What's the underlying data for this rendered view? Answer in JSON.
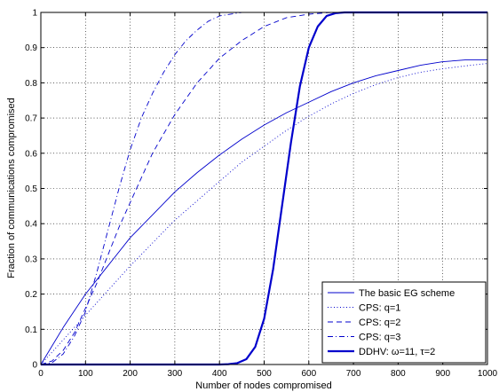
{
  "chart_data": {
    "type": "line",
    "title": "",
    "xlabel": "Number of nodes compromised",
    "ylabel": "Fraction of communications compromised",
    "xlim": [
      0,
      1000
    ],
    "ylim": [
      0,
      1
    ],
    "xticks": [
      0,
      100,
      200,
      300,
      400,
      500,
      600,
      700,
      800,
      900,
      1000
    ],
    "yticks": [
      0,
      0.1,
      0.2,
      0.3,
      0.4,
      0.5,
      0.6,
      0.7,
      0.8,
      0.9,
      1
    ],
    "xtick_labels": [
      "0",
      "100",
      "200",
      "300",
      "400",
      "500",
      "600",
      "700",
      "800",
      "900",
      "1000"
    ],
    "ytick_labels": [
      "0",
      "0.1",
      "0.2",
      "0.3",
      "0.4",
      "0.5",
      "0.6",
      "0.7",
      "0.8",
      "0.9",
      "1"
    ],
    "grid": true,
    "legend_position": "bottom-right",
    "color": "#0000cc",
    "series": [
      {
        "name": "The basic EG scheme",
        "style": "solid",
        "width": "thin",
        "x": [
          0,
          50,
          100,
          150,
          200,
          250,
          300,
          350,
          400,
          450,
          500,
          550,
          600,
          650,
          700,
          750,
          800,
          850,
          900,
          950,
          1000
        ],
        "y": [
          0,
          0.105,
          0.2,
          0.28,
          0.36,
          0.425,
          0.49,
          0.545,
          0.595,
          0.64,
          0.68,
          0.715,
          0.745,
          0.775,
          0.8,
          0.82,
          0.835,
          0.85,
          0.86,
          0.865,
          0.865
        ]
      },
      {
        "name": "CPS: q=1",
        "style": "dotted",
        "width": "thin",
        "x": [
          0,
          50,
          100,
          150,
          200,
          250,
          300,
          350,
          400,
          450,
          500,
          550,
          600,
          650,
          700,
          750,
          800,
          850,
          900,
          950,
          1000
        ],
        "y": [
          0,
          0.07,
          0.14,
          0.21,
          0.28,
          0.345,
          0.41,
          0.465,
          0.52,
          0.575,
          0.62,
          0.665,
          0.705,
          0.74,
          0.77,
          0.795,
          0.815,
          0.83,
          0.84,
          0.848,
          0.855
        ]
      },
      {
        "name": "CPS: q=2",
        "style": "dashed",
        "width": "thin",
        "x": [
          0,
          25,
          50,
          75,
          100,
          125,
          150,
          175,
          200,
          225,
          250,
          300,
          350,
          400,
          450,
          500,
          550,
          600,
          650,
          700,
          800,
          900,
          1000
        ],
        "y": [
          0,
          0.01,
          0.04,
          0.09,
          0.16,
          0.23,
          0.31,
          0.39,
          0.46,
          0.53,
          0.6,
          0.71,
          0.8,
          0.87,
          0.92,
          0.96,
          0.985,
          0.995,
          1,
          1,
          1,
          1,
          1
        ]
      },
      {
        "name": "CPS: q=3",
        "style": "dashdot",
        "width": "thin",
        "x": [
          0,
          25,
          50,
          75,
          100,
          125,
          150,
          175,
          200,
          225,
          250,
          275,
          300,
          325,
          350,
          375,
          400,
          450,
          500,
          600,
          700,
          800,
          900,
          1000
        ],
        "y": [
          0,
          0.005,
          0.03,
          0.08,
          0.15,
          0.26,
          0.38,
          0.5,
          0.61,
          0.7,
          0.77,
          0.83,
          0.88,
          0.92,
          0.95,
          0.975,
          0.99,
          1,
          1,
          1,
          1,
          1,
          1,
          1
        ]
      },
      {
        "name": "DDHV: ω=11, τ=2",
        "style": "solid",
        "width": "thick",
        "x": [
          0,
          100,
          200,
          300,
          400,
          420,
          440,
          460,
          480,
          500,
          520,
          540,
          560,
          580,
          600,
          620,
          640,
          660,
          680,
          700,
          800,
          900,
          1000
        ],
        "y": [
          0,
          0,
          0,
          0,
          0,
          0.001,
          0.004,
          0.015,
          0.05,
          0.13,
          0.27,
          0.45,
          0.63,
          0.79,
          0.9,
          0.96,
          0.99,
          0.998,
          1,
          1,
          1,
          1,
          1
        ]
      }
    ]
  }
}
